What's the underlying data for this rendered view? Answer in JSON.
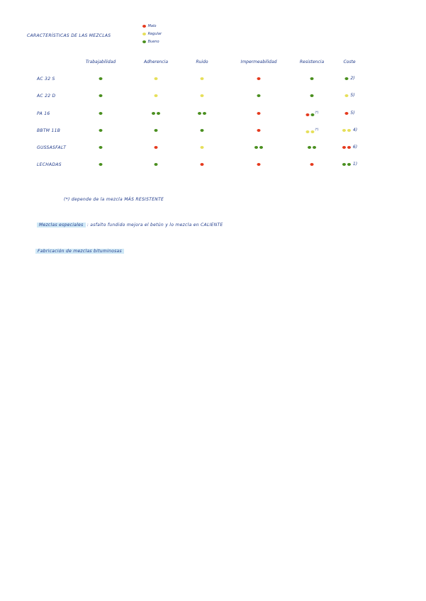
{
  "title": "CARACTERÍSTICAS DE LAS MEZCLAS",
  "colors": {
    "malo": "#e53a1e",
    "regular": "#e6df5a",
    "bueno": "#4a8f1f",
    "ink": "#1f3a8a",
    "highlight": "#cfe8f6"
  },
  "legend": [
    {
      "label": "Malo",
      "color": "malo"
    },
    {
      "label": "Regular",
      "color": "regular"
    },
    {
      "label": "Bueno",
      "color": "bueno"
    }
  ],
  "columns": [
    "Trabajabilidad",
    "Adherencia",
    "Ruido",
    "Impermeabilidad",
    "Resistencia",
    "Coste"
  ],
  "rows": [
    {
      "label": "AC 32 S",
      "cells": [
        [
          "bueno"
        ],
        [
          "regular"
        ],
        [
          "regular"
        ],
        [
          "malo"
        ],
        [
          "bueno"
        ],
        [
          "bueno"
        ]
      ],
      "coste": "2)"
    },
    {
      "label": "AC 22 D",
      "cells": [
        [
          "bueno"
        ],
        [
          "regular"
        ],
        [
          "regular"
        ],
        [
          "bueno"
        ],
        [
          "bueno"
        ],
        [
          "regular"
        ]
      ],
      "coste": "5)"
    },
    {
      "label": "PA 16",
      "cells": [
        [
          "bueno"
        ],
        [
          "bueno",
          "bueno"
        ],
        [
          "bueno",
          "bueno"
        ],
        [
          "malo"
        ],
        [
          "malo",
          "bueno"
        ],
        [
          "malo"
        ]
      ],
      "note_col": 4,
      "note": "(*)",
      "coste": "5)"
    },
    {
      "label": "BBTM 11B",
      "cells": [
        [
          "bueno"
        ],
        [
          "bueno"
        ],
        [
          "bueno"
        ],
        [
          "malo"
        ],
        [
          "regular",
          "regular"
        ],
        [
          "regular",
          "regular"
        ]
      ],
      "note_col": 4,
      "note": "(*)",
      "coste": "4)"
    },
    {
      "label": "GUSSASFALT",
      "cells": [
        [
          "bueno"
        ],
        [
          "malo"
        ],
        [
          "regular"
        ],
        [
          "bueno",
          "bueno"
        ],
        [
          "bueno",
          "bueno"
        ],
        [
          "malo",
          "malo"
        ]
      ],
      "coste": "6)"
    },
    {
      "label": "LECHADAS",
      "cells": [
        [
          "bueno"
        ],
        [
          "bueno"
        ],
        [
          "malo"
        ],
        [
          "malo"
        ],
        [
          "malo"
        ],
        [
          "bueno",
          "bueno"
        ]
      ],
      "coste": "1)"
    }
  ],
  "footnote": "(*) depende de la mezcla  MÁS RESISTENTE",
  "special": {
    "label": "Mezclas especiales",
    "text": ":  asfalto fundido mejora el betún y lo mezcla en CALIENTE"
  },
  "section": "Fabricación de mezclas bituminosas"
}
